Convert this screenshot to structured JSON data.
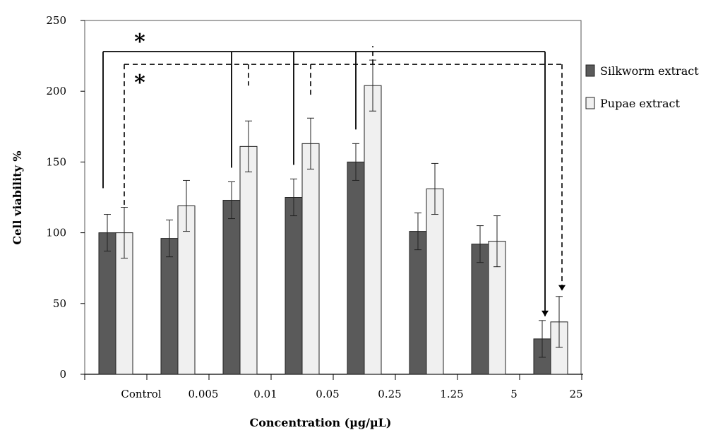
{
  "chart_data": {
    "type": "bar",
    "xlabel": "Concentration (µg/µL)",
    "ylabel": "Cell viability %",
    "ylim": [
      0,
      250
    ],
    "yticks": [
      0,
      50,
      100,
      150,
      200,
      250
    ],
    "categories": [
      "Control",
      "0.005",
      "0.01",
      "0.05",
      "0.25",
      "1.25",
      "5",
      "25"
    ],
    "series": [
      {
        "name": "Silkworm extract",
        "color": "#5a5a5a",
        "values": [
          100,
          96,
          123,
          125,
          150,
          101,
          92,
          25
        ],
        "errors": [
          13,
          13,
          13,
          13,
          13,
          13,
          13,
          13
        ]
      },
      {
        "name": "Pupae extract",
        "color": "#f0f0f0",
        "values": [
          100,
          119,
          161,
          163,
          204,
          131,
          94,
          37
        ],
        "errors": [
          18,
          18,
          18,
          18,
          18,
          18,
          18,
          18
        ]
      }
    ],
    "legend": "right",
    "grid": false,
    "annotations": {
      "significance_mark": "*",
      "solid_bracket": {
        "series": "Silkworm extract",
        "categories": [
          "Control",
          "0.01",
          "0.05",
          "0.25",
          "25"
        ],
        "level": 228
      },
      "dashed_bracket": {
        "series": "Pupae extract",
        "categories": [
          "Control",
          "0.01",
          "0.05",
          "0.25",
          "25"
        ],
        "level": 219
      }
    }
  }
}
